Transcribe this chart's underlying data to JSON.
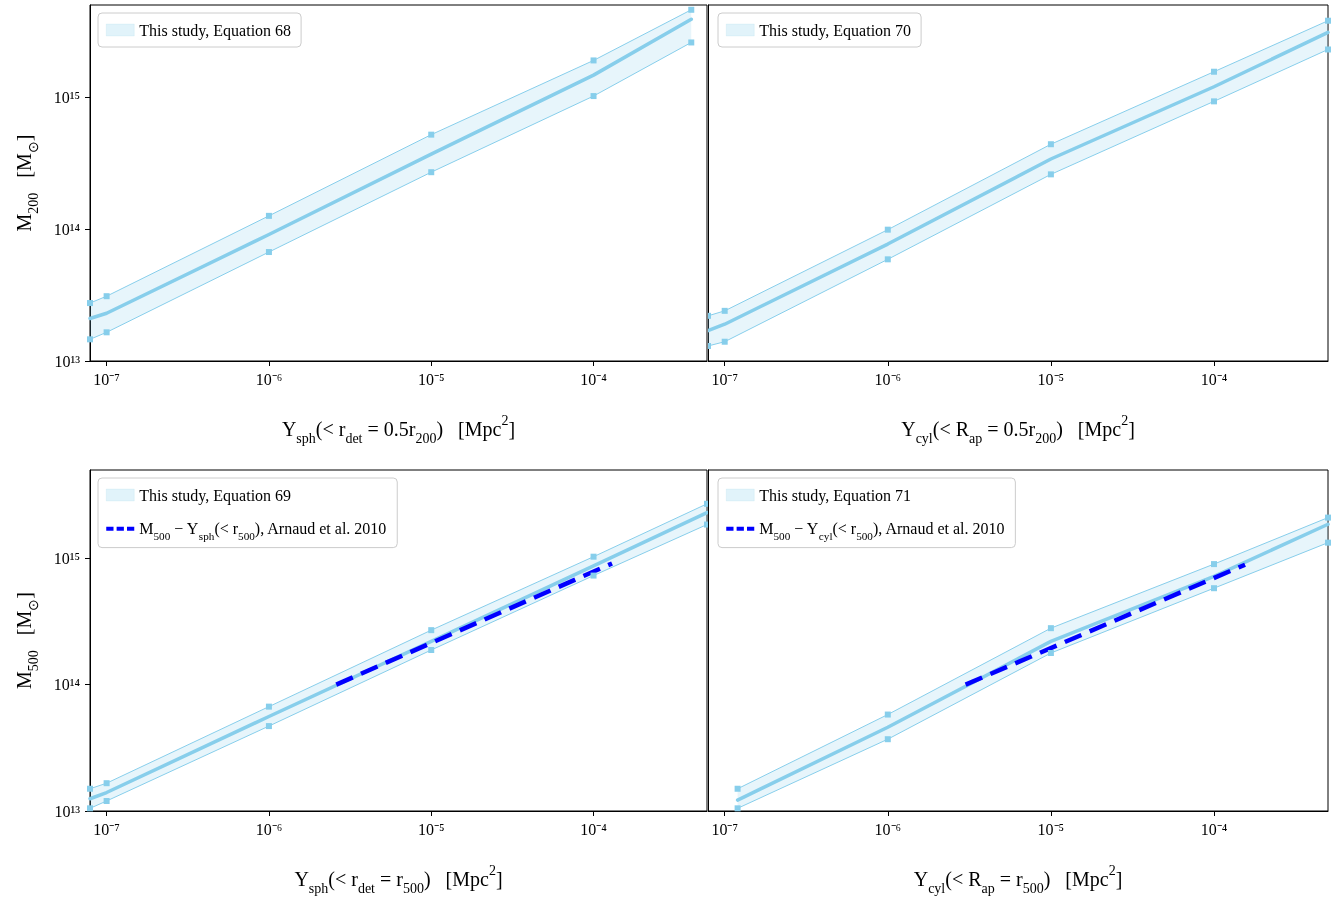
{
  "chart_data": [
    {
      "type": "line",
      "xlabel": "Y$_{sph}$(< r$_{det}$ = 0.5r$_{200}$)   [Mpc$^{2}$]",
      "ylabel": "M$_{200}$   [M$_{⊙}$]",
      "x": [
        7.9e-08,
        1e-07,
        1e-06,
        1e-05,
        0.0001,
        0.0004
      ],
      "series": [
        {
          "name": "This study, Equation 68",
          "color": "#87ceeb",
          "values": [
            21000000000000.0,
            23000000000000.0,
            91000000000000.0,
            370000000000000.0,
            1470000000000000.0,
            3900000000000000.0
          ],
          "lower": [
            14600000000000.0,
            16500000000000.0,
            67000000000000.0,
            270000000000000.0,
            1020000000000000.0,
            2600000000000000.0
          ],
          "upper": [
            27500000000000.0,
            31000000000000.0,
            126000000000000.0,
            520000000000000.0,
            1900000000000000.0,
            4600000000000000.0
          ],
          "marker": "none"
        },
        {
          "color": "#87ceeb",
          "values": [
            27500000000000.0,
            31000000000000.0,
            126000000000000.0,
            520000000000000.0,
            1900000000000000.0,
            4600000000000000.0
          ],
          "marker": "square"
        },
        {
          "color": "#87ceeb",
          "values": [
            14600000000000.0,
            16500000000000.0,
            67000000000000.0,
            270000000000000.0,
            1020000000000000.0,
            2600000000000000.0
          ],
          "marker": "square"
        }
      ],
      "xlim": [
        7.9e-08,
        0.0005
      ],
      "ylim": [
        10000000000000.0,
        5000000000000000.0
      ],
      "xticks": [
        {
          "value": 1e-07,
          "label": "10⁻⁷"
        },
        {
          "value": 1e-06,
          "label": "10⁻⁶"
        },
        {
          "value": 1e-05,
          "label": "10⁻⁵"
        },
        {
          "value": 0.0001,
          "label": "10⁻⁴"
        }
      ],
      "yticks": [
        {
          "value": 10000000000000.0,
          "label": "10¹³"
        },
        {
          "value": 100000000000000.0,
          "label": "10¹⁴"
        },
        {
          "value": 1000000000000000.0,
          "label": "10¹⁵"
        }
      ],
      "log": "xy",
      "legend": "top left",
      "line_style": "solid"
    },
    {
      "type": "line",
      "xlabel": "Y$_{cyl}$(< R$_{ap}$ = 0.5r$_{200}$)   [Mpc$^{2}$]",
      "x": [
        7.9e-08,
        1e-07,
        1e-06,
        1e-05,
        0.0001,
        0.0005
      ],
      "series": [
        {
          "name": "This study, Equation 70",
          "color": "#87ceeb",
          "values": [
            17000000000000.0,
            19000000000000.0,
            77000000000000.0,
            340000000000000.0,
            1200000000000000.0,
            3100000000000000.0
          ],
          "lower": [
            13000000000000.0,
            14000000000000.0,
            59000000000000.0,
            260000000000000.0,
            930000000000000.0,
            2300000000000000.0
          ],
          "upper": [
            22000000000000.0,
            24000000000000.0,
            99000000000000.0,
            440000000000000.0,
            1560000000000000.0,
            3800000000000000.0
          ],
          "marker": "none"
        },
        {
          "color": "#87ceeb",
          "values": [
            22000000000000.0,
            24000000000000.0,
            99000000000000.0,
            440000000000000.0,
            1560000000000000.0,
            3800000000000000.0
          ],
          "marker": "square"
        },
        {
          "color": "#87ceeb",
          "values": [
            13000000000000.0,
            14000000000000.0,
            59000000000000.0,
            260000000000000.0,
            930000000000000.0,
            2300000000000000.0
          ],
          "marker": "square"
        }
      ],
      "xlim": [
        7.9e-08,
        0.0005
      ],
      "ylim": [
        10000000000000.0,
        5000000000000000.0
      ],
      "xticks": [
        {
          "value": 1e-07,
          "label": "10⁻⁷"
        },
        {
          "value": 1e-06,
          "label": "10⁻⁶"
        },
        {
          "value": 1e-05,
          "label": "10⁻⁵"
        },
        {
          "value": 0.0001,
          "label": "10⁻⁴"
        }
      ],
      "yticks": [
        {
          "value": 10000000000000.0,
          "label": null
        },
        {
          "value": 100000000000000.0,
          "label": null
        },
        {
          "value": 1000000000000000.0,
          "label": null
        }
      ],
      "log": "xy",
      "legend": "top left",
      "line_style": "solid",
      "tick_labels": "x"
    },
    {
      "type": "line",
      "xlabel": "Y$_{sph}$(< r$_{det}$ = r$_{500}$)   [Mpc$^{2}$]",
      "ylabel": "M$_{500}$   [M$_{⊙}$]",
      "x": [
        7.9e-08,
        1e-07,
        1e-06,
        1e-05,
        0.0001,
        0.0005
      ],
      "series": [
        {
          "name": "This study, Equation 69",
          "color": "#87ceeb",
          "values": [
            12500000000000.0,
            14000000000000.0,
            56000000000000.0,
            220000000000000.0,
            870000000000000.0,
            2300000000000000.0
          ],
          "lower": [
            10500000000000.0,
            12000000000000.0,
            47000000000000.0,
            188000000000000.0,
            730000000000000.0,
            1850000000000000.0
          ],
          "upper": [
            15000000000000.0,
            16600000000000.0,
            67000000000000.0,
            270000000000000.0,
            1030000000000000.0,
            2700000000000000.0
          ],
          "marker": "none"
        },
        {
          "color": "#87ceeb",
          "values": [
            15000000000000.0,
            16600000000000.0,
            67000000000000.0,
            270000000000000.0,
            1030000000000000.0,
            2700000000000000.0
          ],
          "marker": "square"
        },
        {
          "color": "#87ceeb",
          "values": [
            10500000000000.0,
            12000000000000.0,
            47000000000000.0,
            188000000000000.0,
            730000000000000.0,
            1850000000000000.0
          ],
          "marker": "square"
        },
        {
          "name": "M$_{500}$ − Y$_{sph}$(< r$_{500}$), Arnaud et al. 2010",
          "color": "#0000ff",
          "x": [
            2.6e-06,
            0.00013
          ],
          "values": [
            100000000000000.0,
            910000000000000.0
          ],
          "line_style": "dashed",
          "marker": "none"
        }
      ],
      "xlim": [
        7.9e-08,
        0.0005
      ],
      "ylim": [
        10000000000000.0,
        5000000000000000.0
      ],
      "xticks": [
        {
          "value": 1e-07,
          "label": "10⁻⁷"
        },
        {
          "value": 1e-06,
          "label": "10⁻⁶"
        },
        {
          "value": 1e-05,
          "label": "10⁻⁵"
        },
        {
          "value": 0.0001,
          "label": "10⁻⁴"
        }
      ],
      "yticks": [
        {
          "value": 10000000000000.0,
          "label": "10¹³"
        },
        {
          "value": 100000000000000.0,
          "label": "10¹⁴"
        },
        {
          "value": 1000000000000000.0,
          "label": "10¹⁵"
        }
      ],
      "log": "xy",
      "legend": "top left",
      "line_style": "solid"
    },
    {
      "type": "line",
      "xlabel": "Y$_{cyl}$(< R$_{ap}$ = r$_{500}$)   [Mpc$^{2}$]",
      "x": [
        1.2e-07,
        1e-06,
        1e-05,
        0.0001,
        0.0005
      ],
      "series": [
        {
          "name": "This study, Equation 71",
          "color": "#87ceeb",
          "values": [
            12200000000000.0,
            46000000000000.0,
            220000000000000.0,
            720000000000000.0,
            1860000000000000.0
          ],
          "lower": [
            10500000000000.0,
            37000000000000.0,
            178000000000000.0,
            580000000000000.0,
            1330000000000000.0
          ],
          "upper": [
            15000000000000.0,
            58000000000000.0,
            280000000000000.0,
            900000000000000.0,
            2100000000000000.0
          ],
          "marker": "none"
        },
        {
          "color": "#87ceeb",
          "values": [
            15000000000000.0,
            58000000000000.0,
            280000000000000.0,
            900000000000000.0,
            2100000000000000.0
          ],
          "marker": "square"
        },
        {
          "color": "#87ceeb",
          "values": [
            10500000000000.0,
            37000000000000.0,
            178000000000000.0,
            580000000000000.0,
            1330000000000000.0
          ],
          "marker": "square"
        },
        {
          "name": "M$_{500}$ − Y$_{cyl}$(< r$_{500}$), Arnaud et al. 2010",
          "color": "#0000ff",
          "x": [
            3e-06,
            0.000155
          ],
          "values": [
            100000000000000.0,
            890000000000000.0
          ],
          "line_style": "dashed",
          "marker": "none"
        }
      ],
      "xlim": [
        7.9e-08,
        0.0005
      ],
      "ylim": [
        10000000000000.0,
        5000000000000000.0
      ],
      "xticks": [
        {
          "value": 1e-07,
          "label": "10⁻⁷"
        },
        {
          "value": 1e-06,
          "label": "10⁻⁶"
        },
        {
          "value": 1e-05,
          "label": "10⁻⁵"
        },
        {
          "value": 0.0001,
          "label": "10⁻⁴"
        }
      ],
      "yticks": [
        {
          "value": 10000000000000.0,
          "label": null
        },
        {
          "value": 100000000000000.0,
          "label": null
        },
        {
          "value": 1000000000000000.0,
          "label": null
        }
      ],
      "log": "xy",
      "legend": "top left",
      "line_style": "solid",
      "tick_labels": "x"
    }
  ]
}
